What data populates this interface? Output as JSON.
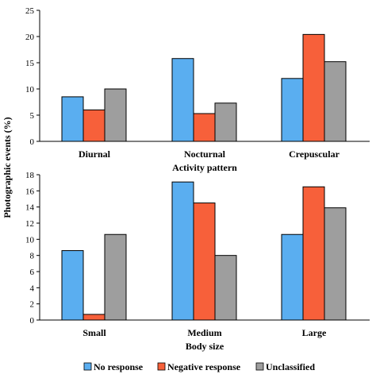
{
  "chart_data": [
    {
      "type": "bar",
      "xlabel": "Activity pattern",
      "ylabel": "Photographic events (%)",
      "categories": [
        "Diurnal",
        "Nocturnal",
        "Crepuscular"
      ],
      "ylim": [
        0,
        25
      ],
      "yticks": [
        0,
        5,
        10,
        15,
        20,
        25
      ],
      "grid": false,
      "series": [
        {
          "name": "No response",
          "values": [
            8.5,
            15.8,
            12.0
          ]
        },
        {
          "name": "Negative response",
          "values": [
            6.0,
            5.3,
            20.4
          ]
        },
        {
          "name": "Unclassified",
          "values": [
            10.0,
            7.3,
            15.2
          ]
        }
      ]
    },
    {
      "type": "bar",
      "xlabel": "Body size",
      "ylabel": "Photographic events (%)",
      "categories": [
        "Small",
        "Medium",
        "Large"
      ],
      "ylim": [
        0,
        18
      ],
      "yticks": [
        0,
        2,
        4,
        6,
        8,
        10,
        12,
        14,
        16,
        18
      ],
      "grid": false,
      "series": [
        {
          "name": "No response",
          "values": [
            8.6,
            17.1,
            10.6
          ]
        },
        {
          "name": "Negative response",
          "values": [
            0.7,
            14.5,
            16.5
          ]
        },
        {
          "name": "Unclassified",
          "values": [
            10.6,
            8.0,
            13.9
          ]
        }
      ]
    }
  ],
  "legend": {
    "placement": "bottom",
    "items": [
      "No response",
      "Negative response",
      "Unclassified"
    ]
  },
  "colors": {
    "No response": "#5aaef0",
    "Negative response": "#f7603a",
    "Unclassified": "#9e9e9e",
    "stroke": "#000000"
  }
}
